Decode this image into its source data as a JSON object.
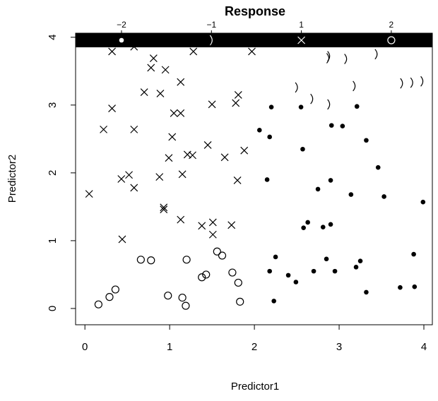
{
  "chart_data": {
    "type": "scatter",
    "title": "Response",
    "x_label": "Predictor1",
    "y_label": "Predictor2",
    "xlim": [
      -0.11,
      4.1
    ],
    "ylim": [
      -0.24,
      4.06
    ],
    "xticks": [
      0,
      1,
      2,
      3,
      4
    ],
    "yticks": [
      0,
      1,
      2,
      3,
      4
    ],
    "legend": "top",
    "series": [
      {
        "name": "−2",
        "marker": "dot",
        "color": "#000000",
        "x": [
          2.2,
          2.18,
          2.06,
          2.55,
          2.57,
          2.91,
          3.04,
          3.21,
          3.32,
          3.46,
          3.53,
          3.14,
          2.9,
          2.75,
          2.58,
          2.63,
          2.81,
          2.9,
          2.15,
          2.25,
          2.18,
          2.4,
          2.49,
          2.7,
          2.85,
          2.95,
          3.2,
          3.25,
          3.32,
          3.72,
          3.89,
          3.88,
          3.99,
          2.23
        ],
        "values": [
          2.97,
          2.53,
          2.63,
          2.97,
          2.35,
          2.7,
          2.69,
          2.98,
          2.48,
          2.08,
          1.65,
          1.68,
          1.89,
          1.76,
          1.19,
          1.27,
          1.2,
          1.24,
          1.9,
          0.76,
          0.55,
          0.49,
          0.39,
          0.55,
          0.73,
          0.55,
          0.61,
          0.7,
          0.24,
          0.31,
          0.32,
          0.8,
          1.57,
          0.11
        ]
      },
      {
        "name": "−1",
        "marker": "paren",
        "color": "#000000",
        "x": [
          1.48,
          2.88,
          2.87,
          3.08,
          3.44,
          2.5,
          2.68,
          2.88,
          3.18,
          3.74,
          3.86,
          3.98
        ],
        "values": [
          3.95,
          3.72,
          3.69,
          3.68,
          3.75,
          3.26,
          3.09,
          3.01,
          3.28,
          3.32,
          3.33,
          3.35
        ]
      },
      {
        "name": "1",
        "marker": "cross",
        "color": "#000000",
        "x": [
          0.32,
          0.58,
          0.81,
          0.78,
          0.95,
          1.28,
          1.97,
          0.7,
          0.89,
          1.13,
          1.81,
          1.78,
          1.05,
          1.13,
          0.32,
          0.22,
          0.58,
          1.5,
          1.03,
          1.21,
          1.27,
          1.45,
          1.65,
          1.88,
          0.99,
          0.43,
          0.52,
          0.58,
          0.88,
          1.15,
          1.8,
          0.05,
          0.93,
          0.93,
          1.13,
          1.38,
          1.51,
          1.51,
          1.73,
          0.44
        ],
        "values": [
          3.79,
          3.86,
          3.69,
          3.55,
          3.52,
          3.79,
          3.79,
          3.19,
          3.17,
          3.34,
          3.15,
          3.03,
          2.88,
          2.88,
          2.95,
          2.64,
          2.64,
          3.01,
          2.53,
          2.27,
          2.26,
          2.41,
          2.23,
          2.33,
          2.22,
          1.91,
          1.97,
          1.78,
          1.94,
          1.98,
          1.89,
          1.69,
          1.49,
          1.46,
          1.31,
          1.22,
          1.27,
          1.09,
          1.23,
          1.02
        ]
      },
      {
        "name": "2",
        "marker": "circle",
        "color": "#000000",
        "x": [
          0.16,
          0.29,
          0.36,
          0.66,
          0.78,
          1.2,
          0.98,
          1.15,
          1.19,
          1.38,
          1.43,
          1.56,
          1.62,
          1.74,
          1.81,
          1.83
        ],
        "values": [
          0.06,
          0.17,
          0.28,
          0.72,
          0.71,
          0.72,
          0.19,
          0.16,
          0.04,
          0.46,
          0.5,
          0.84,
          0.78,
          0.53,
          0.38,
          0.1
        ]
      }
    ]
  }
}
